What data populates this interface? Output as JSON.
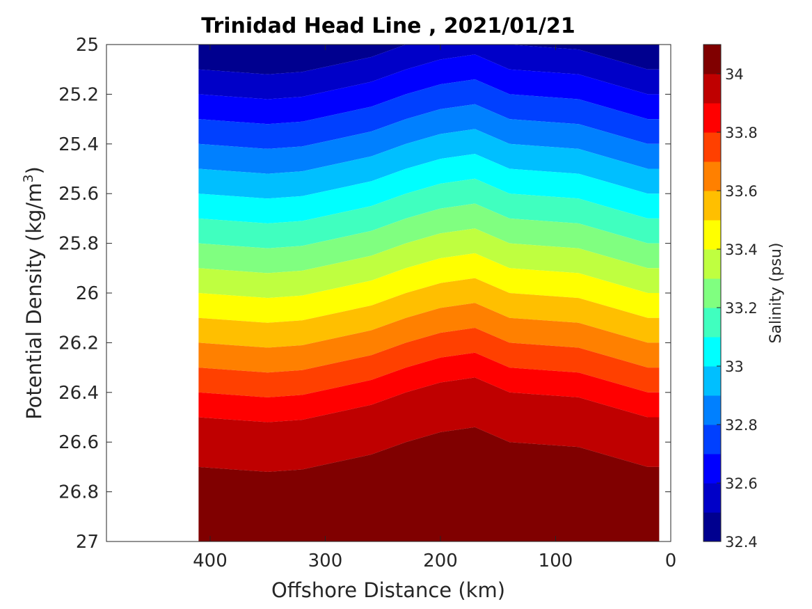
{
  "chart_data": {
    "type": "heatmap",
    "subtype": "filled-contour",
    "title": "Trinidad Head Line , 2021/01/21",
    "xlabel": "Offshore Distance (km)",
    "ylabel_main": "Potential Density (kg/m",
    "ylabel_sup": "3",
    "ylabel_end": ")",
    "xlim": [
      490,
      0
    ],
    "x_reversed": true,
    "ylim": [
      25,
      27
    ],
    "y_reversed": true,
    "x_ticks": [
      "400",
      "300",
      "200",
      "100",
      "0"
    ],
    "y_ticks": [
      "25",
      "25.2",
      "25.4",
      "25.6",
      "25.8",
      "26",
      "26.2",
      "26.4",
      "26.6",
      "26.8",
      "27"
    ],
    "colorbar": {
      "label": "Salinity (psu)",
      "range": [
        32.4,
        34.1
      ],
      "step": 0.1,
      "tick_labels": [
        "32.4",
        "32.6",
        "32.8",
        "33",
        "33.2",
        "33.4",
        "33.6",
        "33.8",
        "34"
      ],
      "colors": [
        "#00008f",
        "#0000c8",
        "#0000ff",
        "#0040ff",
        "#0080ff",
        "#00bfff",
        "#00ffff",
        "#40ffbf",
        "#80ff80",
        "#bfff40",
        "#ffff00",
        "#ffbf00",
        "#ff8000",
        "#ff4000",
        "#ff0000",
        "#bf0000",
        "#800000"
      ]
    },
    "data_extent_km": [
      410,
      10
    ],
    "stations_km": [
      410,
      380,
      350,
      320,
      290,
      260,
      230,
      200,
      170,
      140,
      110,
      80,
      50,
      20,
      10
    ],
    "isopycnal_shift": [
      0.0,
      0.01,
      0.02,
      0.01,
      -0.02,
      -0.05,
      -0.1,
      -0.14,
      -0.16,
      -0.1,
      -0.09,
      -0.08,
      -0.04,
      0.0,
      0.0
    ],
    "salinity_profile": {
      "density": [
        25.0,
        25.1,
        25.2,
        25.3,
        25.4,
        25.5,
        25.6,
        25.7,
        25.8,
        25.9,
        26.0,
        26.1,
        26.2,
        26.3,
        26.4,
        26.5,
        26.6,
        26.7,
        26.8,
        26.9,
        27.0
      ],
      "salinity": [
        32.45,
        32.5,
        32.6,
        32.7,
        32.8,
        32.9,
        33.0,
        33.1,
        33.2,
        33.3,
        33.4,
        33.5,
        33.6,
        33.7,
        33.8,
        33.9,
        33.95,
        34.0,
        34.05,
        34.08,
        34.1
      ]
    },
    "grid": false,
    "legend": "colorbar-right"
  }
}
